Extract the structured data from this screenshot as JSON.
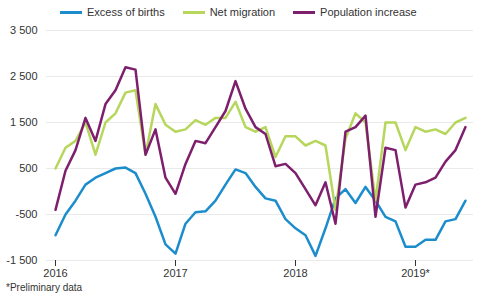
{
  "chart_data": {
    "type": "line",
    "categories": [
      "2016",
      null,
      null,
      null,
      null,
      null,
      null,
      null,
      null,
      null,
      null,
      null,
      "2017",
      null,
      null,
      null,
      null,
      null,
      null,
      null,
      null,
      null,
      null,
      null,
      "2018",
      null,
      null,
      null,
      null,
      null,
      null,
      null,
      null,
      null,
      null,
      null,
      "2019*",
      null,
      null,
      null,
      null,
      null
    ],
    "series": [
      {
        "name": "Excess of births",
        "color": "#1c8dcc",
        "values": [
          -950,
          -500,
          -200,
          150,
          300,
          400,
          500,
          520,
          400,
          -50,
          -550,
          -1150,
          -1350,
          -700,
          -450,
          -430,
          -200,
          150,
          480,
          400,
          100,
          -150,
          -200,
          -600,
          -800,
          -950,
          -1400,
          -800,
          -150,
          50,
          -250,
          100,
          -200,
          -550,
          -650,
          -1200,
          -1200,
          -1050,
          -1050,
          -650,
          -600,
          -200
        ]
      },
      {
        "name": "Net migration",
        "color": "#b6d65c",
        "values": [
          500,
          950,
          1100,
          1500,
          800,
          1500,
          1700,
          2150,
          2200,
          800,
          1900,
          1450,
          1300,
          1350,
          1550,
          1450,
          1600,
          1600,
          1950,
          1400,
          1300,
          1400,
          750,
          1200,
          1200,
          1000,
          1100,
          1000,
          -400,
          1150,
          1700,
          1500,
          -200,
          1500,
          1500,
          900,
          1400,
          1300,
          1350,
          1250,
          1500,
          1600
        ]
      },
      {
        "name": "Population increase",
        "color": "#7e1f6e",
        "values": [
          -400,
          450,
          900,
          1600,
          1100,
          1900,
          2200,
          2700,
          2650,
          800,
          1350,
          300,
          -50,
          600,
          1100,
          1050,
          1400,
          1750,
          2400,
          1800,
          1400,
          1250,
          550,
          600,
          400,
          50,
          -300,
          200,
          -700,
          1300,
          1400,
          1650,
          -550,
          950,
          900,
          -350,
          150,
          200,
          300,
          650,
          900,
          1400
        ]
      }
    ],
    "ylim": [
      -1500,
      3500
    ],
    "yticks": [
      {
        "value": -1500,
        "label": "-1 500"
      },
      {
        "value": -500,
        "label": "-500"
      },
      {
        "value": 500,
        "label": "500"
      },
      {
        "value": 1500,
        "label": "1 500"
      },
      {
        "value": 2500,
        "label": "2 500"
      },
      {
        "value": 3500,
        "label": "3 500"
      }
    ],
    "grid": true,
    "legend": "top",
    "caption": "*Preliminary data"
  }
}
